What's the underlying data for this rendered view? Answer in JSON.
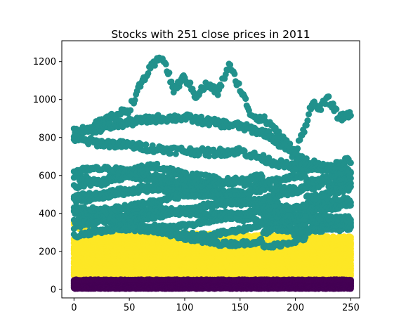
{
  "chart_data": {
    "type": "scatter",
    "title": "Stocks with 251 close prices in 2011",
    "xlabel": "",
    "ylabel": "",
    "xlim": [
      -11,
      258
    ],
    "ylim": [
      -45,
      1310
    ],
    "xticks": [
      0,
      50,
      100,
      150,
      200,
      250
    ],
    "yticks": [
      0,
      200,
      400,
      600,
      800,
      1000,
      1200
    ],
    "xtick_labels": [
      "0",
      "50",
      "100",
      "150",
      "200",
      "250"
    ],
    "ytick_labels": [
      "0",
      "200",
      "400",
      "600",
      "800",
      "1000",
      "1200"
    ],
    "grid": false,
    "legend": "none",
    "n_points_per_stock": 251,
    "colors": {
      "low_price_group": "#440154",
      "mid_price_group": "#fde725",
      "high_price_group": "#21918c"
    },
    "groups": [
      {
        "color_key": "low_price_group",
        "price_range": [
          0,
          60
        ]
      },
      {
        "color_key": "mid_price_group",
        "price_range": [
          60,
          320
        ]
      },
      {
        "color_key": "high_price_group",
        "price_range": [
          260,
          1250
        ]
      }
    ],
    "high_price_series": [
      {
        "x": [
          0,
          25,
          50,
          62,
          70,
          80,
          90,
          100,
          110,
          120,
          130,
          140,
          150,
          160,
          170,
          180,
          190,
          200,
          210,
          215,
          220,
          230,
          240,
          250
        ],
        "y": [
          820,
          880,
          950,
          1100,
          1170,
          1230,
          1050,
          1120,
          1020,
          1080,
          1040,
          1180,
          1060,
          920,
          900,
          860,
          780,
          720,
          880,
          990,
          950,
          1000,
          900,
          930
        ]
      },
      {
        "x": [
          0,
          25,
          50,
          75,
          100,
          125,
          150,
          175,
          200,
          225,
          250
        ],
        "y": [
          830,
          850,
          880,
          900,
          905,
          880,
          860,
          820,
          700,
          640,
          680
        ]
      },
      {
        "x": [
          0,
          25,
          50,
          75,
          100,
          125,
          150,
          175,
          200,
          225,
          250
        ],
        "y": [
          790,
          770,
          760,
          740,
          730,
          720,
          730,
          680,
          640,
          650,
          620
        ]
      },
      {
        "x": [
          0,
          25,
          50,
          75,
          100,
          125,
          150,
          175,
          200,
          225,
          250
        ],
        "y": [
          600,
          560,
          620,
          650,
          600,
          580,
          570,
          540,
          520,
          550,
          560
        ]
      },
      {
        "x": [
          0,
          25,
          50,
          75,
          100,
          125,
          150,
          175,
          200,
          225,
          250
        ],
        "y": [
          480,
          500,
          520,
          540,
          510,
          500,
          480,
          450,
          420,
          460,
          470
        ]
      },
      {
        "x": [
          0,
          25,
          50,
          75,
          100,
          125,
          150,
          175,
          200,
          225,
          250
        ],
        "y": [
          330,
          360,
          400,
          420,
          410,
          400,
          380,
          350,
          300,
          330,
          350
        ]
      }
    ]
  }
}
